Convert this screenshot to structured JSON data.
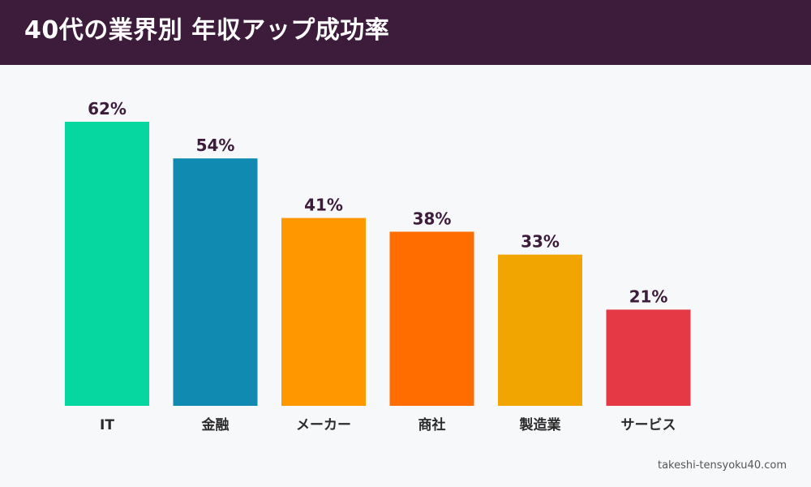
{
  "header": {
    "title": "40代の業界別 年収アップ成功率"
  },
  "footer": {
    "source": "takeshi-tensyoku40.com"
  },
  "chart_data": {
    "type": "bar",
    "categories": [
      "IT",
      "金融",
      "メーカー",
      "商社",
      "製造業",
      "サービス"
    ],
    "values": [
      62,
      54,
      41,
      38,
      33,
      21
    ],
    "value_labels": [
      "62%",
      "54%",
      "41%",
      "38%",
      "33%",
      "21%"
    ],
    "colors": [
      "#06d6a0",
      "#118ab2",
      "#ff9800",
      "#ff6d00",
      "#f0a500",
      "#e63946"
    ],
    "ylim": [
      0,
      62
    ],
    "grid": false,
    "legend": "none",
    "title": "40代の業界別 年収アップ成功率",
    "xlabel": "",
    "ylabel": ""
  }
}
